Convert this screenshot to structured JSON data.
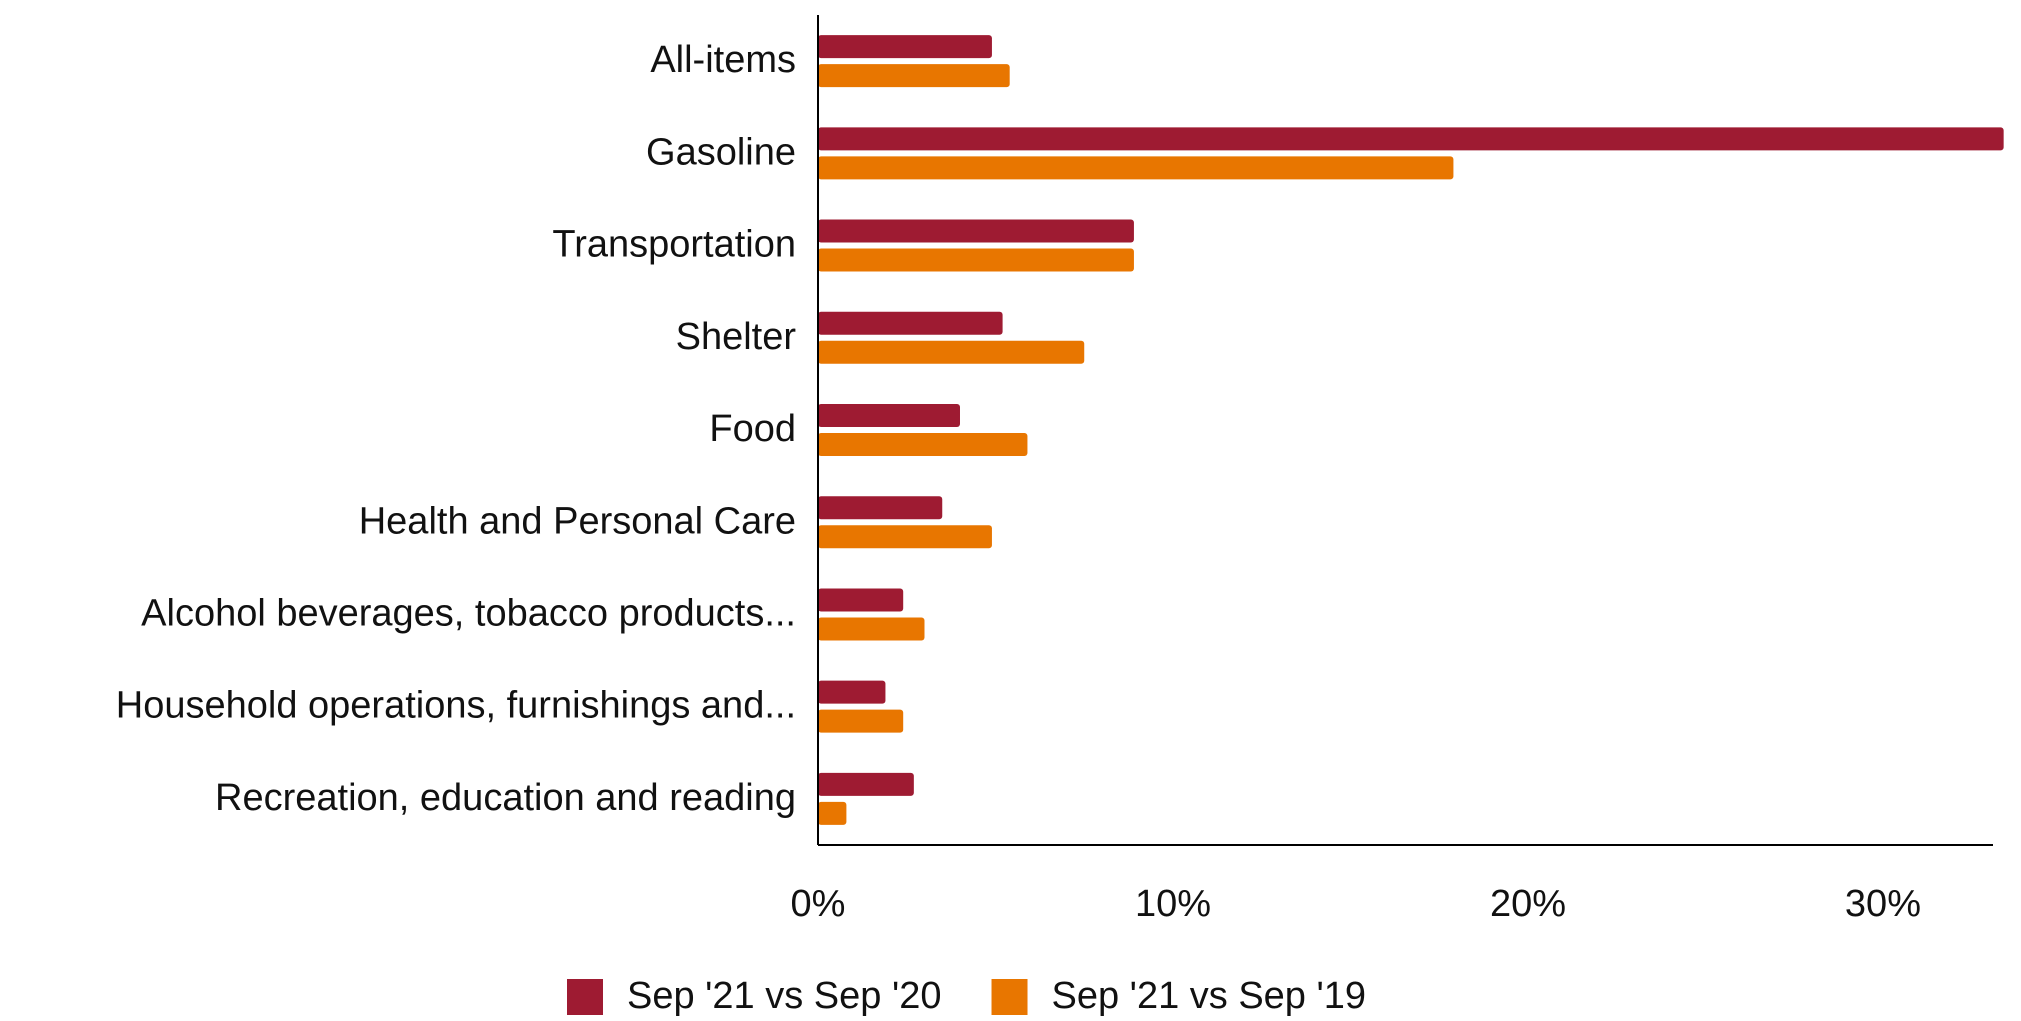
{
  "chart_data": {
    "type": "bar",
    "orientation": "horizontal",
    "categories": [
      "All-items",
      "Gasoline",
      "Transportation",
      "Shelter",
      "Food",
      "Health and Personal Care",
      "Alcohol beverages, tobacco products...",
      "Household operations, furnishings and...",
      "Recreation, education and reading"
    ],
    "series": [
      {
        "name": "Sep '21 vs Sep '20",
        "color": "#9e1b32",
        "values": [
          4.9,
          33.4,
          8.9,
          5.2,
          4.0,
          3.5,
          2.4,
          1.9,
          2.7
        ]
      },
      {
        "name": "Sep '21 vs Sep '19",
        "color": "#e87600",
        "values": [
          5.4,
          17.9,
          8.9,
          7.5,
          5.9,
          4.9,
          3.0,
          2.4,
          0.8
        ]
      }
    ],
    "xlim": [
      0,
      33.1
    ],
    "xticks": [
      {
        "value": 0,
        "label": "0%"
      },
      {
        "value": 10,
        "label": "10%"
      },
      {
        "value": 20,
        "label": "20%"
      },
      {
        "value": 30,
        "label": "30%"
      }
    ],
    "legend": "bottom"
  }
}
